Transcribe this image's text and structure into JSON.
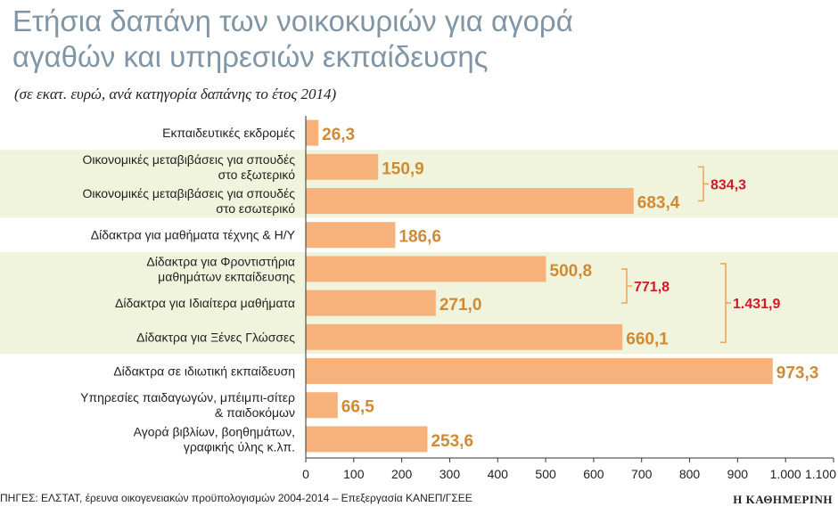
{
  "chart_data": {
    "type": "bar",
    "orientation": "horizontal",
    "title": [
      "Ετήσια δαπάνη των νοικοκυριών για αγορά",
      "αγαθών και υπηρεσιών εκπαίδευσης"
    ],
    "subtitle": "(σε εκατ. ευρώ, ανά κατηγορία δαπάνης το έτος 2014)",
    "categories": [
      [
        "Εκπαιδευτικές εκδρομές"
      ],
      [
        "Οικονομικές μεταβιβάσεις για σπουδές",
        "στο εξωτερικό"
      ],
      [
        "Οικονομικές μεταβιβάσεις για σπουδές",
        "στο εσωτερικό"
      ],
      [
        "Δίδακτρα για μαθήματα τέχνης & Η/Υ"
      ],
      [
        "Δίδακτρα για Φροντιστήρια",
        "μαθημάτων εκπαίδευσης"
      ],
      [
        "Δίδακτρα για Ιδιαίτερα μαθήματα"
      ],
      [
        "Δίδακτρα για Ξένες Γλώσσες"
      ],
      [
        "Δίδακτρα σε ιδιωτική εκπαίδευση"
      ],
      [
        "Υπηρεσίες παιδαγωγών, μπέιμπι-σίτερ",
        "& παιδοκόμων"
      ],
      [
        "Αγορά βιβλίων, βοηθημάτων,",
        "γραφικής ύλης κ.λπ."
      ]
    ],
    "values": [
      26.3,
      150.9,
      683.4,
      186.6,
      500.8,
      271.0,
      660.1,
      973.3,
      66.5,
      253.6
    ],
    "value_labels": [
      "26,3",
      "150,9",
      "683,4",
      "186,6",
      "500,8",
      "271,0",
      "660,1",
      "973,3",
      "66,5",
      "253,6"
    ],
    "xlim": [
      0,
      1100
    ],
    "xticks": [
      0,
      100,
      200,
      300,
      400,
      500,
      600,
      700,
      800,
      900,
      1000,
      1100
    ],
    "xtick_labels": [
      "0",
      "100",
      "200",
      "300",
      "400",
      "500",
      "600",
      "700",
      "800",
      "900",
      "1.000",
      "1.100"
    ],
    "group_sums": [
      {
        "rows": [
          1,
          2
        ],
        "label": "834,3"
      },
      {
        "rows": [
          4,
          5
        ],
        "label": "771,8"
      },
      {
        "rows": [
          4,
          6
        ],
        "label": "1.431,9"
      }
    ],
    "shaded_rows": [
      1,
      2,
      4,
      5,
      6
    ],
    "bar_color": "#f7b27c",
    "value_color": "#d08a34",
    "sum_color": "#d4182a",
    "bracket_color": "#f0a65a",
    "shade_color": "#f0f4dd"
  },
  "source": "ΠΗΓΕΣ: ΕΛΣΤΑΤ, έρευνα οικογενειακών προϋπολογισμών 2004-2014 – Επεξεργασία ΚΑΝΕΠ/ΓΣΕΕ",
  "brand": "Η ΚΑΘΗΜΕΡΙΝΗ"
}
